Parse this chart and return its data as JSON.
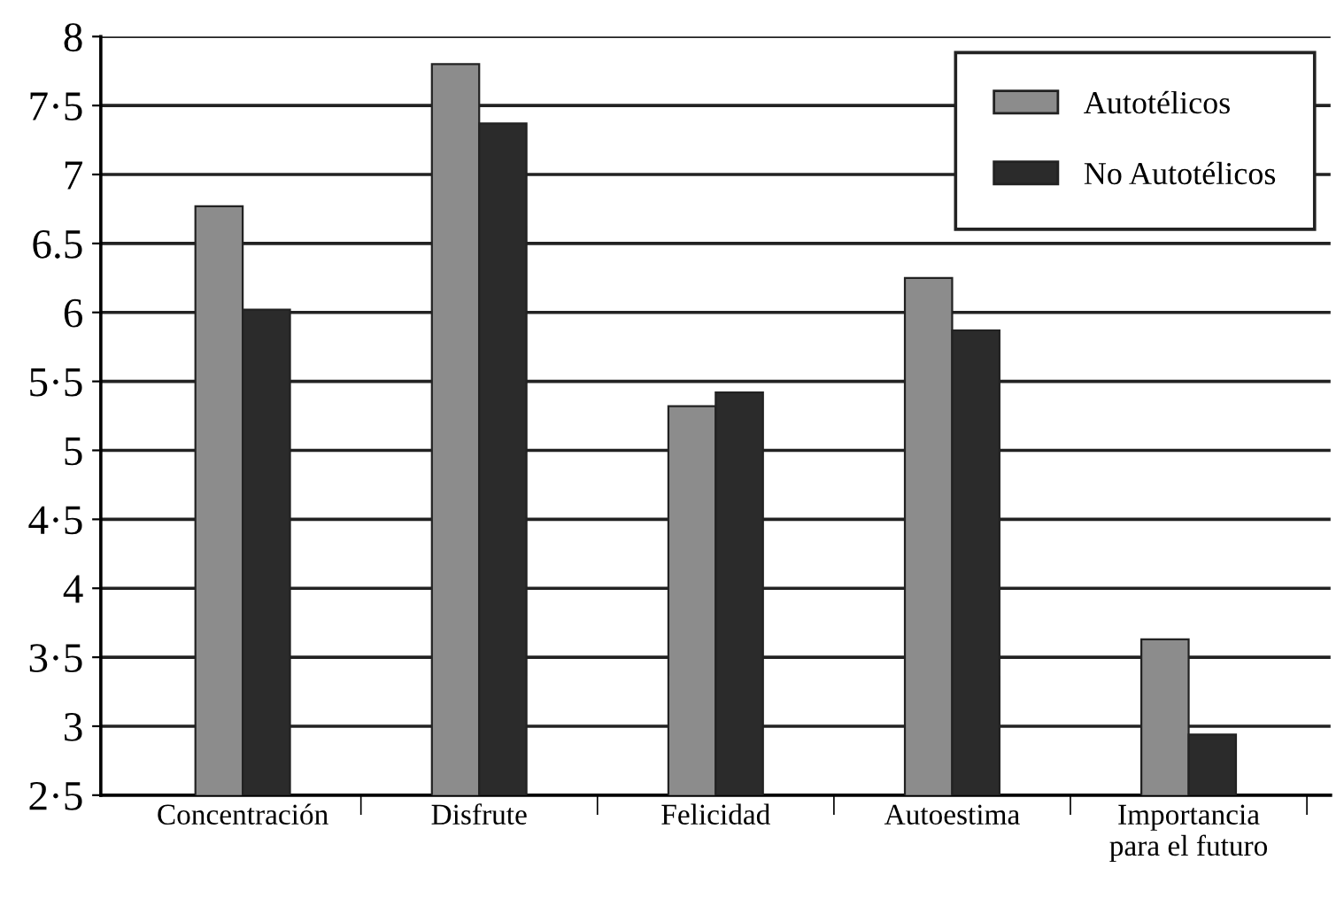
{
  "chart_data": {
    "type": "bar",
    "categories": [
      "Concentración",
      "Disfrute",
      "Felicidad",
      "Autoestima",
      "Importancia\npara el futuro"
    ],
    "series": [
      {
        "name": "Autotélicos",
        "color": "#8c8c8c",
        "values": [
          6.77,
          7.8,
          5.32,
          6.25,
          3.63
        ]
      },
      {
        "name": "No Autotélicos",
        "color": "#2b2b2b",
        "values": [
          6.02,
          7.37,
          5.42,
          5.87,
          2.94
        ]
      }
    ],
    "ylim": [
      2.5,
      8
    ],
    "yticks": [
      {
        "value": 2.5,
        "label": "2·5"
      },
      3,
      {
        "value": 3.5,
        "label": "3·5"
      },
      4,
      {
        "value": 4.5,
        "label": "4·5"
      },
      5,
      {
        "value": 5.5,
        "label": "5·5"
      },
      6,
      {
        "value": 6.5,
        "label": "6.5"
      },
      7,
      {
        "value": 7.5,
        "label": "7·5"
      },
      8
    ],
    "grid": "y",
    "legend": "top right"
  }
}
